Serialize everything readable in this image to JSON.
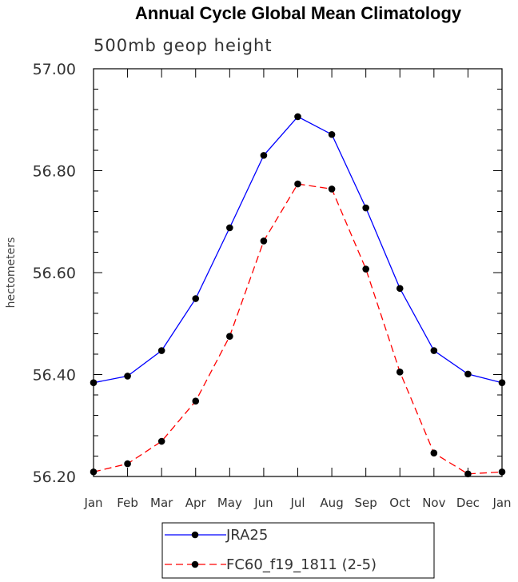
{
  "chart_data": {
    "type": "line",
    "title": "Annual Cycle Global Mean Climatology",
    "subtitle": "500mb geop height",
    "xlabel": "",
    "ylabel": "hectometers",
    "ylim": [
      56.2,
      57.0
    ],
    "yticks": [
      "56.20",
      "56.40",
      "56.60",
      "56.80",
      "57.00"
    ],
    "categories": [
      "Jan",
      "Feb",
      "Mar",
      "Apr",
      "May",
      "Jun",
      "Jul",
      "Aug",
      "Sep",
      "Oct",
      "Nov",
      "Dec",
      "Jan"
    ],
    "grid": false,
    "legend_position": "bottom-center",
    "series": [
      {
        "name": "JRA25",
        "color": "#0000ff",
        "dash": "solid",
        "values": [
          56.384,
          56.397,
          56.447,
          56.549,
          56.688,
          56.83,
          56.906,
          56.871,
          56.727,
          56.569,
          56.447,
          56.401,
          56.384
        ]
      },
      {
        "name": "FC60_f19_1811 (2-5)",
        "color": "#ff0000",
        "dash": "dashed",
        "values": [
          56.209,
          56.225,
          56.269,
          56.348,
          56.475,
          56.662,
          56.774,
          56.764,
          56.607,
          56.405,
          56.246,
          56.205,
          56.209
        ]
      }
    ]
  }
}
